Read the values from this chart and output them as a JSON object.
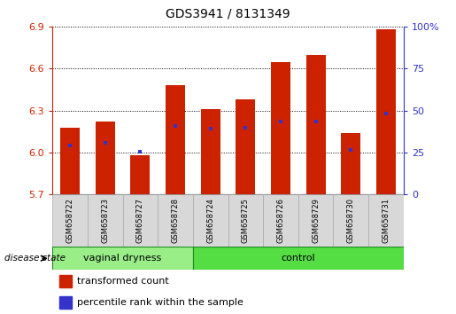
{
  "title": "GDS3941 / 8131349",
  "samples": [
    "GSM658722",
    "GSM658723",
    "GSM658727",
    "GSM658728",
    "GSM658724",
    "GSM658725",
    "GSM658726",
    "GSM658729",
    "GSM658730",
    "GSM658731"
  ],
  "bar_values": [
    6.18,
    6.22,
    5.98,
    6.48,
    6.31,
    6.38,
    6.65,
    6.7,
    6.14,
    6.88
  ],
  "bar_bottom": 5.7,
  "blue_marker_values": [
    6.05,
    6.07,
    6.01,
    6.19,
    6.17,
    6.18,
    6.22,
    6.22,
    6.02,
    6.28
  ],
  "ylim_left": [
    5.7,
    6.9
  ],
  "ylim_right": [
    0,
    100
  ],
  "yticks_left": [
    5.7,
    6.0,
    6.3,
    6.6,
    6.9
  ],
  "yticks_right": [
    0,
    25,
    50,
    75,
    100
  ],
  "bar_color": "#cc2200",
  "blue_color": "#3333cc",
  "group1_label": "vaginal dryness",
  "group2_label": "control",
  "group1_count": 4,
  "group2_count": 6,
  "group1_bg": "#99ee88",
  "group2_bg": "#55dd44",
  "xlabel_label": "disease state",
  "legend_red_label": "transformed count",
  "legend_blue_label": "percentile rank within the sample",
  "title_fontsize": 10,
  "tick_fontsize": 8,
  "sample_fontsize": 6,
  "group_fontsize": 8,
  "legend_fontsize": 8
}
